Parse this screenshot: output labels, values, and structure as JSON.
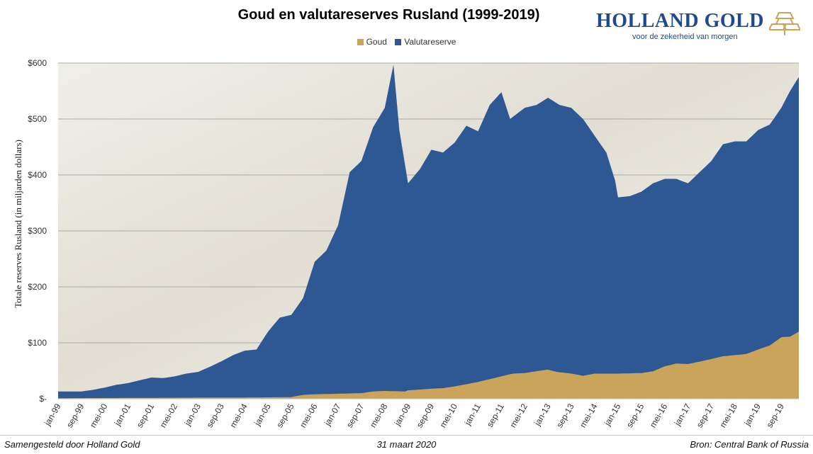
{
  "title": "Goud en valutareserves Rusland (1999-2019)",
  "brand": {
    "name": "HOLLAND GOLD",
    "tagline": "voor de zekerheid van morgen",
    "logo_icon": "gold-bars-icon",
    "color": "#1f4a8f"
  },
  "footer": {
    "left": "Samengesteld door Holland Gold",
    "center": "31 maart 2020",
    "right": "Bron: Central Bank of Russia"
  },
  "chart_data": {
    "type": "area",
    "stacked": true,
    "title": "Goud en valutareserves Rusland (1999-2019)",
    "ylabel": "Totale reserves Rusland (in miljarden dollars)",
    "xlabel": "",
    "ylim": [
      0,
      600
    ],
    "yticks": [
      "$-",
      "$100",
      "$200",
      "$300",
      "$400",
      "$500",
      "$600"
    ],
    "ytick_values": [
      0,
      100,
      200,
      300,
      400,
      500,
      600
    ],
    "xticks": [
      "jan-99",
      "sep-99",
      "mei-00",
      "jan-01",
      "sep-01",
      "mei-02",
      "jan-03",
      "sep-03",
      "mei-04",
      "jan-05",
      "sep-05",
      "mei-06",
      "jan-07",
      "sep-07",
      "mei-08",
      "jan-09",
      "sep-09",
      "mei-10",
      "jan-11",
      "sep-11",
      "mei-12",
      "jan-13",
      "sep-13",
      "mei-14",
      "jan-15",
      "sep-15",
      "mei-16",
      "jan-17",
      "sep-17",
      "mei-18",
      "jan-19",
      "sep-19"
    ],
    "grid": true,
    "legend_position": "top",
    "x_start": "1999-01",
    "x_end": "2020-03",
    "series": [
      {
        "name": "Goud",
        "color": "#c9a45a",
        "points": [
          [
            "1999-01",
            1
          ],
          [
            "2001-01",
            1.5
          ],
          [
            "2003-01",
            2
          ],
          [
            "2005-01",
            2.5
          ],
          [
            "2005-09",
            3
          ],
          [
            "2006-01",
            7
          ],
          [
            "2006-05",
            8
          ],
          [
            "2007-01",
            9
          ],
          [
            "2007-09",
            10
          ],
          [
            "2008-01",
            13
          ],
          [
            "2008-05",
            14
          ],
          [
            "2008-12",
            13
          ],
          [
            "2009-01",
            15
          ],
          [
            "2009-09",
            18
          ],
          [
            "2010-01",
            19
          ],
          [
            "2010-05",
            22
          ],
          [
            "2011-01",
            30
          ],
          [
            "2011-09",
            40
          ],
          [
            "2012-01",
            45
          ],
          [
            "2012-05",
            46
          ],
          [
            "2012-10",
            50
          ],
          [
            "2013-01",
            52
          ],
          [
            "2013-04",
            48
          ],
          [
            "2013-09",
            45
          ],
          [
            "2014-01",
            41
          ],
          [
            "2014-05",
            45
          ],
          [
            "2014-09",
            45
          ],
          [
            "2015-01",
            45
          ],
          [
            "2015-09",
            46
          ],
          [
            "2016-01",
            49
          ],
          [
            "2016-05",
            58
          ],
          [
            "2016-09",
            63
          ],
          [
            "2017-01",
            62
          ],
          [
            "2017-09",
            71
          ],
          [
            "2018-01",
            76
          ],
          [
            "2018-05",
            78
          ],
          [
            "2018-09",
            80
          ],
          [
            "2019-01",
            88
          ],
          [
            "2019-05",
            95
          ],
          [
            "2019-09",
            110
          ],
          [
            "2019-12",
            111
          ],
          [
            "2020-03",
            120
          ]
        ]
      },
      {
        "name": "Valutareserve",
        "color": "#2d5894",
        "points_total": [
          [
            "1999-01",
            13
          ],
          [
            "1999-09",
            13
          ],
          [
            "2000-01",
            16
          ],
          [
            "2000-05",
            20
          ],
          [
            "2000-09",
            25
          ],
          [
            "2001-01",
            28
          ],
          [
            "2001-05",
            33
          ],
          [
            "2001-09",
            38
          ],
          [
            "2002-01",
            37
          ],
          [
            "2002-05",
            40
          ],
          [
            "2002-09",
            45
          ],
          [
            "2003-01",
            48
          ],
          [
            "2003-05",
            57
          ],
          [
            "2003-09",
            67
          ],
          [
            "2004-01",
            78
          ],
          [
            "2004-05",
            86
          ],
          [
            "2004-09",
            88
          ],
          [
            "2005-01",
            120
          ],
          [
            "2005-05",
            145
          ],
          [
            "2005-09",
            150
          ],
          [
            "2006-01",
            180
          ],
          [
            "2006-05",
            245
          ],
          [
            "2006-09",
            265
          ],
          [
            "2007-01",
            310
          ],
          [
            "2007-05",
            405
          ],
          [
            "2007-09",
            425
          ],
          [
            "2008-01",
            485
          ],
          [
            "2008-05",
            520
          ],
          [
            "2008-08",
            597
          ],
          [
            "2008-10",
            480
          ],
          [
            "2009-01",
            385
          ],
          [
            "2009-05",
            410
          ],
          [
            "2009-09",
            445
          ],
          [
            "2010-01",
            440
          ],
          [
            "2010-05",
            458
          ],
          [
            "2010-09",
            488
          ],
          [
            "2011-01",
            478
          ],
          [
            "2011-05",
            525
          ],
          [
            "2011-09",
            548
          ],
          [
            "2011-12",
            500
          ],
          [
            "2012-05",
            520
          ],
          [
            "2012-09",
            525
          ],
          [
            "2013-01",
            538
          ],
          [
            "2013-05",
            525
          ],
          [
            "2013-09",
            520
          ],
          [
            "2014-01",
            500
          ],
          [
            "2014-05",
            470
          ],
          [
            "2014-09",
            440
          ],
          [
            "2014-12",
            390
          ],
          [
            "2015-01",
            360
          ],
          [
            "2015-05",
            362
          ],
          [
            "2015-09",
            370
          ],
          [
            "2016-01",
            385
          ],
          [
            "2016-05",
            393
          ],
          [
            "2016-09",
            393
          ],
          [
            "2017-01",
            385
          ],
          [
            "2017-05",
            405
          ],
          [
            "2017-09",
            425
          ],
          [
            "2018-01",
            455
          ],
          [
            "2018-05",
            460
          ],
          [
            "2018-09",
            460
          ],
          [
            "2019-01",
            480
          ],
          [
            "2019-05",
            490
          ],
          [
            "2019-09",
            520
          ],
          [
            "2019-12",
            550
          ],
          [
            "2020-03",
            575
          ]
        ]
      }
    ]
  }
}
